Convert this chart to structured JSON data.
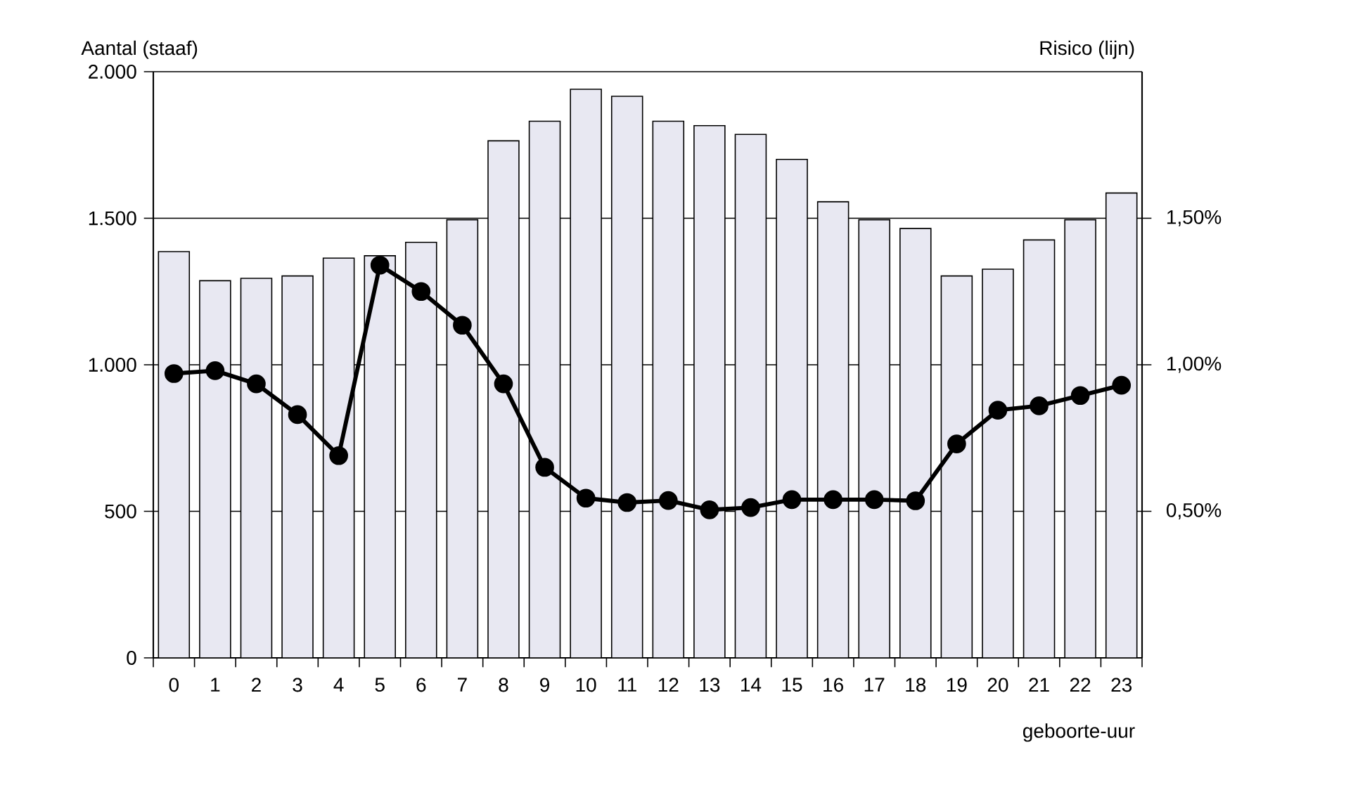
{
  "chart_data": {
    "type": "bar",
    "categories": [
      "0",
      "1",
      "2",
      "3",
      "4",
      "5",
      "6",
      "7",
      "8",
      "9",
      "10",
      "11",
      "12",
      "13",
      "14",
      "15",
      "16",
      "17",
      "18",
      "19",
      "20",
      "21",
      "22",
      "23"
    ],
    "series": [
      {
        "color": "#e8e8f2",
        "values": [
          1386,
          1287,
          1295,
          1303,
          1364,
          1372,
          1418,
          1495,
          1764,
          1831,
          1940,
          1916,
          1831,
          1816,
          1786,
          1701,
          1556,
          1495,
          1465,
          1303,
          1326,
          1426,
          1495,
          1586
        ]
      },
      {
        "type": "line",
        "axis": "y2",
        "color": "#000000",
        "marker": "circle",
        "values": [
          0.97,
          0.98,
          0.935,
          0.83,
          0.69,
          1.34,
          1.25,
          1.135,
          0.935,
          0.65,
          0.545,
          0.53,
          0.537,
          0.505,
          0.513,
          0.54,
          0.54,
          0.54,
          0.536,
          0.73,
          0.845,
          0.86,
          0.895,
          0.93
        ]
      }
    ],
    "ylim": [
      0,
      2000
    ],
    "yticks": [
      0,
      500,
      {
        "value": 1000,
        "label": "1.000"
      },
      {
        "value": 1500,
        "label": "1.500"
      },
      {
        "value": 2000,
        "label": "2.000"
      }
    ],
    "y2lim": [
      0,
      2
    ],
    "y2ticks": [
      {
        "value": 0.5,
        "label": "0,50%"
      },
      {
        "value": 1,
        "label": "1,00%"
      },
      {
        "value": 1.5,
        "label": "1,50%"
      }
    ],
    "grid": "y",
    "xlabel": "geboorte-uur",
    "ylabel": "Aantal (staaf)",
    "y2label": "Risico (lijn)"
  }
}
